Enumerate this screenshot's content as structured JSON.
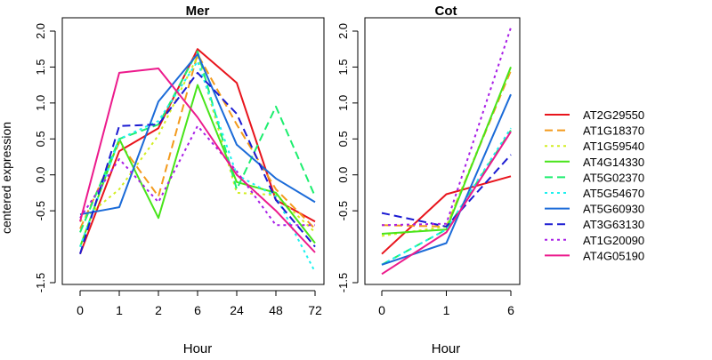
{
  "chart_data": [
    {
      "type": "line",
      "title": "Mer",
      "xlabel": "Hour",
      "ylabel": "centered expression",
      "categories": [
        "0",
        "1",
        "2",
        "6",
        "24",
        "48",
        "72"
      ],
      "ylim": [
        -1.5,
        2.2
      ],
      "yticks": [
        -1.5,
        -0.5,
        0.0,
        0.5,
        1.0,
        1.5,
        2.0
      ],
      "ytick_labels": [
        "-1.5",
        "-0.5",
        "0.0",
        "0.5",
        "1.0",
        "1.5",
        "2.0"
      ],
      "series": [
        {
          "name": "AT2G29550",
          "color": "#e8141c",
          "dash": "solid",
          "values": [
            -1.1,
            0.33,
            0.65,
            1.75,
            1.28,
            -0.35,
            -0.65
          ]
        },
        {
          "name": "AT1G18370",
          "color": "#f39a1c",
          "dash": "dashed",
          "values": [
            -0.75,
            0.45,
            -0.3,
            1.68,
            0.7,
            -0.2,
            -0.75
          ]
        },
        {
          "name": "AT1G59540",
          "color": "#d2ee22",
          "dash": "dotted",
          "values": [
            -0.65,
            -0.2,
            0.55,
            1.65,
            -0.25,
            -0.28,
            -0.8
          ]
        },
        {
          "name": "AT4G14330",
          "color": "#48e41a",
          "dash": "solid",
          "values": [
            -1.0,
            0.5,
            -0.6,
            1.25,
            -0.1,
            -0.25,
            -0.95
          ]
        },
        {
          "name": "AT5G02370",
          "color": "#1cee6e",
          "dash": "dashed",
          "values": [
            -0.8,
            0.5,
            0.7,
            1.72,
            -0.2,
            0.95,
            -0.3
          ]
        },
        {
          "name": "AT5G54670",
          "color": "#1cf0ee",
          "dash": "dotted",
          "values": [
            -1.0,
            0.5,
            0.75,
            1.58,
            0.0,
            -0.3,
            -1.35
          ]
        },
        {
          "name": "AT5G60930",
          "color": "#1b6bd8",
          "dash": "solid",
          "values": [
            -0.55,
            -0.45,
            1.02,
            1.68,
            0.42,
            -0.05,
            -0.38
          ]
        },
        {
          "name": "AT3G63130",
          "color": "#1b1bd2",
          "dash": "dashed",
          "values": [
            -1.1,
            0.68,
            0.7,
            1.42,
            0.85,
            -0.35,
            -1.0
          ]
        },
        {
          "name": "AT1G20090",
          "color": "#a81ee6",
          "dash": "dotted",
          "values": [
            -0.6,
            0.22,
            -0.38,
            0.68,
            0.05,
            -0.7,
            -0.7
          ]
        },
        {
          "name": "AT4G05190",
          "color": "#ec1a8c",
          "dash": "solid",
          "values": [
            -0.65,
            1.42,
            1.48,
            0.8,
            0.0,
            -0.5,
            -1.08
          ]
        }
      ]
    },
    {
      "type": "line",
      "title": "Cot",
      "xlabel": "Hour",
      "ylabel": "",
      "categories": [
        "0",
        "1",
        "6"
      ],
      "ylim": [
        -1.5,
        2.2
      ],
      "yticks": [
        -1.5,
        -0.5,
        0.0,
        0.5,
        1.0,
        1.5,
        2.0
      ],
      "ytick_labels": [
        "-1.5",
        "-0.5",
        "0.0",
        "0.5",
        "1.0",
        "1.5",
        "2.0"
      ],
      "series": [
        {
          "name": "AT2G29550",
          "color": "#e8141c",
          "dash": "solid",
          "values": [
            -1.1,
            -0.27,
            -0.02
          ]
        },
        {
          "name": "AT1G18370",
          "color": "#f39a1c",
          "dash": "dashed",
          "values": [
            -0.7,
            -0.72,
            1.45
          ]
        },
        {
          "name": "AT1G59540",
          "color": "#d2ee22",
          "dash": "dotted",
          "values": [
            -0.85,
            -0.72,
            1.48
          ]
        },
        {
          "name": "AT4G14330",
          "color": "#48e41a",
          "dash": "solid",
          "values": [
            -0.82,
            -0.76,
            1.5
          ]
        },
        {
          "name": "AT5G02370",
          "color": "#1cee6e",
          "dash": "dashed",
          "values": [
            -1.25,
            -0.76,
            0.62
          ]
        },
        {
          "name": "AT5G54670",
          "color": "#1cf0ee",
          "dash": "dotted",
          "values": [
            -1.25,
            -0.76,
            0.65
          ]
        },
        {
          "name": "AT5G60930",
          "color": "#1b6bd8",
          "dash": "solid",
          "values": [
            -1.25,
            -0.95,
            1.12
          ]
        },
        {
          "name": "AT3G63130",
          "color": "#1b1bd2",
          "dash": "dashed",
          "values": [
            -0.53,
            -0.72,
            0.28
          ]
        },
        {
          "name": "AT1G20090",
          "color": "#a81ee6",
          "dash": "dotted",
          "values": [
            -0.7,
            -0.68,
            2.05
          ]
        },
        {
          "name": "AT4G05190",
          "color": "#ec1a8c",
          "dash": "solid",
          "values": [
            -1.38,
            -0.8,
            0.6
          ]
        }
      ]
    }
  ],
  "legend": {
    "placement": "right",
    "entries": [
      {
        "name": "AT2G29550",
        "color": "#e8141c",
        "dash": "solid"
      },
      {
        "name": "AT1G18370",
        "color": "#f39a1c",
        "dash": "dashed"
      },
      {
        "name": "AT1G59540",
        "color": "#d2ee22",
        "dash": "dotted"
      },
      {
        "name": "AT4G14330",
        "color": "#48e41a",
        "dash": "solid"
      },
      {
        "name": "AT5G02370",
        "color": "#1cee6e",
        "dash": "dashed"
      },
      {
        "name": "AT5G54670",
        "color": "#1cf0ee",
        "dash": "dotted"
      },
      {
        "name": "AT5G60930",
        "color": "#1b6bd8",
        "dash": "solid"
      },
      {
        "name": "AT3G63130",
        "color": "#1b1bd2",
        "dash": "dashed"
      },
      {
        "name": "AT1G20090",
        "color": "#a81ee6",
        "dash": "dotted"
      },
      {
        "name": "AT4G05190",
        "color": "#ec1a8c",
        "dash": "solid"
      }
    ]
  }
}
